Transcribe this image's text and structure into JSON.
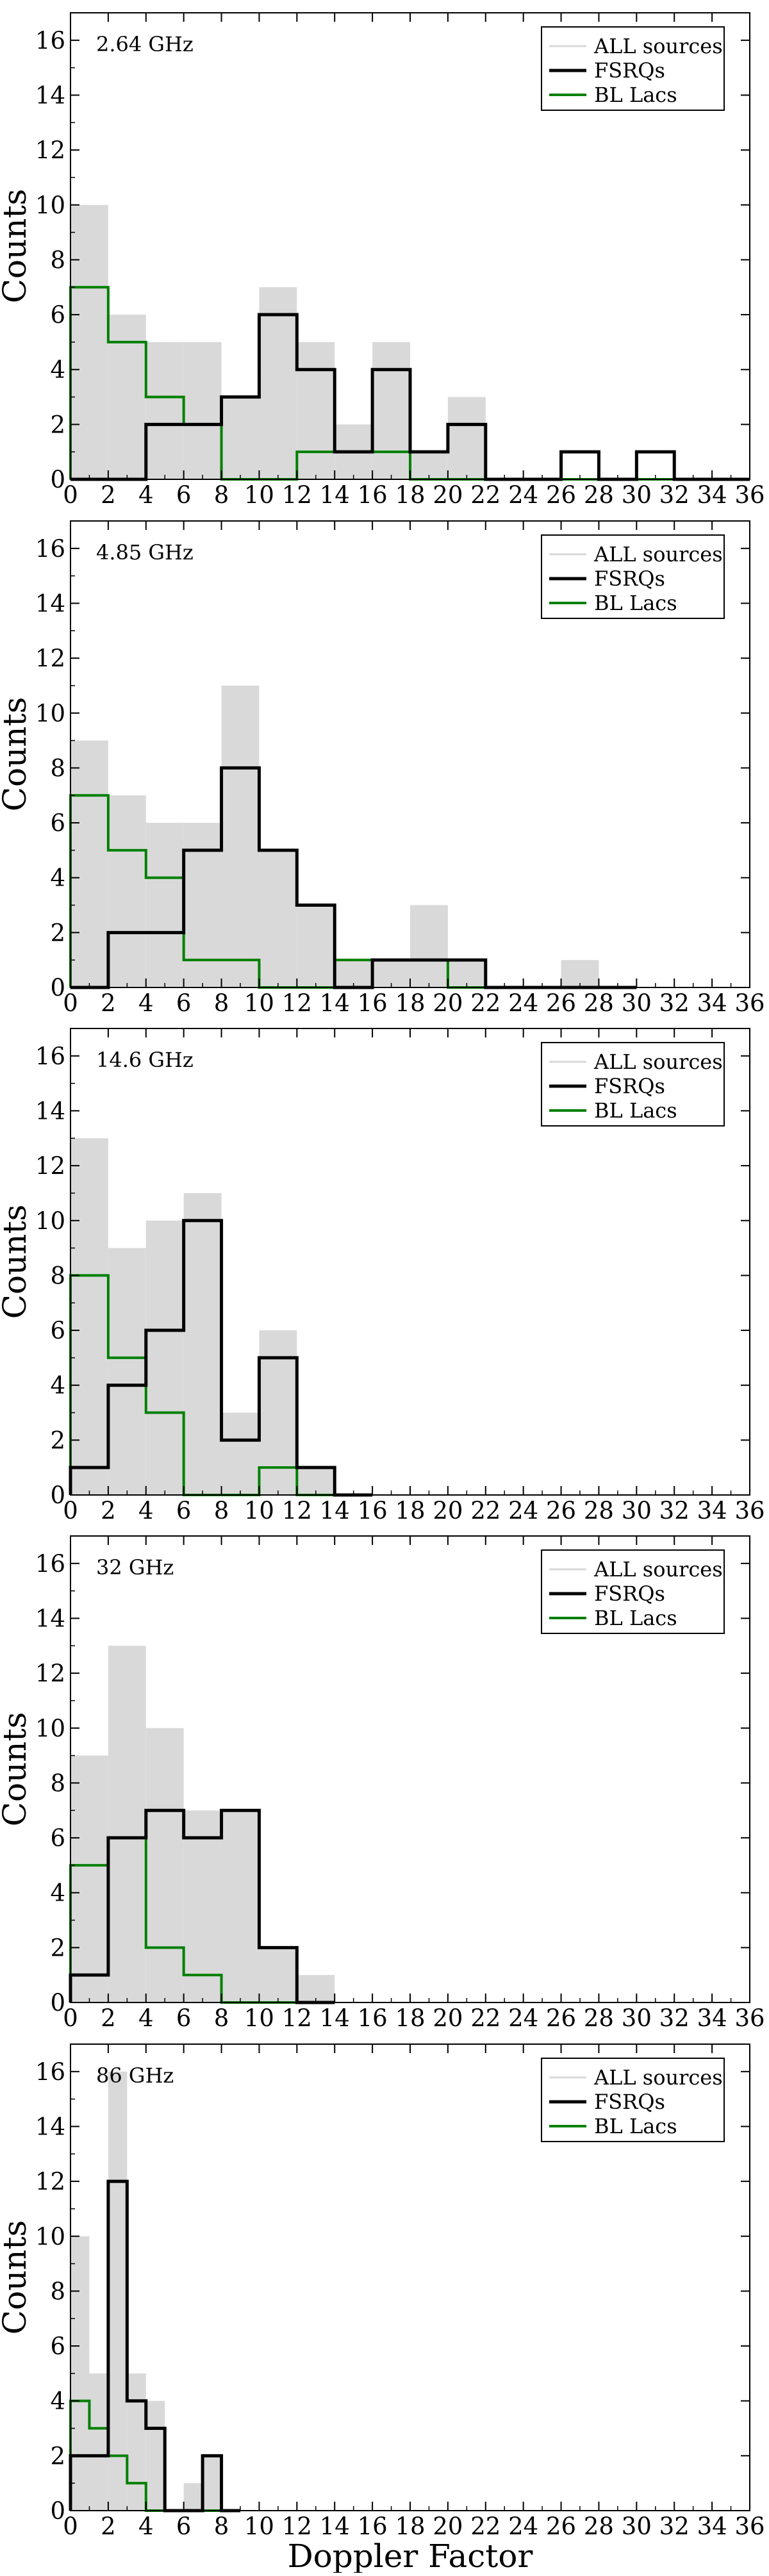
{
  "figure": {
    "xlabel": "Doppler Factor",
    "ylabel": "Counts",
    "colors": {
      "all": "#d9d9d9",
      "fsrq": "#000000",
      "bllac": "#008000"
    }
  },
  "chart_data": [
    {
      "type": "bar",
      "title": "2.64 GHz",
      "xlabel": "",
      "ylabel": "Counts",
      "xlim": [
        0,
        36
      ],
      "ylim": [
        0,
        17
      ],
      "xticks": [
        0,
        2,
        4,
        6,
        8,
        10,
        12,
        14,
        16,
        18,
        20,
        22,
        24,
        26,
        28,
        30,
        32,
        34,
        36
      ],
      "yticks": [
        0,
        2,
        4,
        6,
        8,
        10,
        12,
        14,
        16
      ],
      "legend": [
        "ALL sources",
        "FSRQs",
        "BL Lacs"
      ],
      "legend_position": "top-right",
      "series": [
        {
          "name": "ALL sources",
          "style": "fill",
          "bin_width": 2,
          "bins": [
            [
              0,
              10
            ],
            [
              2,
              6
            ],
            [
              4,
              5
            ],
            [
              6,
              5
            ],
            [
              8,
              3
            ],
            [
              10,
              7
            ],
            [
              12,
              5
            ],
            [
              14,
              2
            ],
            [
              16,
              5
            ],
            [
              18,
              1
            ],
            [
              20,
              3
            ]
          ]
        },
        {
          "name": "FSRQs",
          "style": "step",
          "bin_width": 2,
          "bins": [
            [
              0,
              0
            ],
            [
              2,
              0
            ],
            [
              4,
              2
            ],
            [
              6,
              2
            ],
            [
              8,
              3
            ],
            [
              10,
              6
            ],
            [
              12,
              4
            ],
            [
              14,
              1
            ],
            [
              16,
              4
            ],
            [
              18,
              1
            ],
            [
              20,
              2
            ],
            [
              22,
              0
            ],
            [
              24,
              0
            ],
            [
              26,
              1
            ],
            [
              28,
              0
            ],
            [
              30,
              1
            ],
            [
              32,
              0
            ],
            [
              34,
              0
            ]
          ]
        },
        {
          "name": "BL Lacs",
          "style": "step",
          "bin_width": 2,
          "bins": [
            [
              0,
              7
            ],
            [
              2,
              5
            ],
            [
              4,
              3
            ],
            [
              6,
              2
            ],
            [
              8,
              0
            ],
            [
              10,
              0
            ],
            [
              12,
              1
            ],
            [
              14,
              1
            ],
            [
              16,
              1
            ],
            [
              18,
              0
            ],
            [
              20,
              0
            ],
            [
              22,
              0
            ],
            [
              24,
              0
            ],
            [
              26,
              0
            ],
            [
              28,
              0
            ],
            [
              30,
              0
            ],
            [
              32,
              0
            ],
            [
              34,
              0
            ]
          ]
        }
      ]
    },
    {
      "type": "bar",
      "title": "4.85 GHz",
      "xlabel": "",
      "ylabel": "Counts",
      "xlim": [
        0,
        36
      ],
      "ylim": [
        0,
        17
      ],
      "xticks": [
        0,
        2,
        4,
        6,
        8,
        10,
        12,
        14,
        16,
        18,
        20,
        22,
        24,
        26,
        28,
        30,
        32,
        34,
        36
      ],
      "yticks": [
        0,
        2,
        4,
        6,
        8,
        10,
        12,
        14,
        16
      ],
      "legend": [
        "ALL sources",
        "FSRQs",
        "BL Lacs"
      ],
      "legend_position": "top-right",
      "series": [
        {
          "name": "ALL sources",
          "style": "fill",
          "bin_width": 2,
          "bins": [
            [
              0,
              9
            ],
            [
              2,
              7
            ],
            [
              4,
              6
            ],
            [
              6,
              6
            ],
            [
              8,
              11
            ],
            [
              10,
              5
            ],
            [
              12,
              3
            ],
            [
              14,
              1
            ],
            [
              16,
              1
            ],
            [
              18,
              3
            ],
            [
              20,
              1
            ],
            [
              26,
              1
            ]
          ]
        },
        {
          "name": "FSRQs",
          "style": "step",
          "bin_width": 2,
          "bins": [
            [
              0,
              0
            ],
            [
              2,
              2
            ],
            [
              4,
              2
            ],
            [
              6,
              5
            ],
            [
              8,
              8
            ],
            [
              10,
              5
            ],
            [
              12,
              3
            ],
            [
              14,
              0
            ],
            [
              16,
              1
            ],
            [
              18,
              1
            ],
            [
              20,
              1
            ],
            [
              22,
              0
            ],
            [
              24,
              0
            ],
            [
              26,
              0
            ],
            [
              28,
              0
            ]
          ]
        },
        {
          "name": "BL Lacs",
          "style": "step",
          "bin_width": 2,
          "bins": [
            [
              0,
              7
            ],
            [
              2,
              5
            ],
            [
              4,
              4
            ],
            [
              6,
              1
            ],
            [
              8,
              1
            ],
            [
              10,
              0
            ],
            [
              12,
              0
            ],
            [
              14,
              1
            ],
            [
              16,
              1
            ],
            [
              18,
              1
            ],
            [
              20,
              0
            ],
            [
              22,
              0
            ],
            [
              24,
              0
            ],
            [
              26,
              0
            ],
            [
              28,
              0
            ]
          ]
        }
      ]
    },
    {
      "type": "bar",
      "title": "14.6 GHz",
      "xlabel": "",
      "ylabel": "Counts",
      "xlim": [
        0,
        36
      ],
      "ylim": [
        0,
        17
      ],
      "xticks": [
        0,
        2,
        4,
        6,
        8,
        10,
        12,
        14,
        16,
        18,
        20,
        22,
        24,
        26,
        28,
        30,
        32,
        34,
        36
      ],
      "yticks": [
        0,
        2,
        4,
        6,
        8,
        10,
        12,
        14,
        16
      ],
      "legend": [
        "ALL sources",
        "FSRQs",
        "BL Lacs"
      ],
      "legend_position": "top-right",
      "series": [
        {
          "name": "ALL sources",
          "style": "fill",
          "bin_width": 2,
          "bins": [
            [
              0,
              13
            ],
            [
              2,
              9
            ],
            [
              4,
              10
            ],
            [
              6,
              11
            ],
            [
              8,
              3
            ],
            [
              10,
              6
            ],
            [
              12,
              1
            ]
          ]
        },
        {
          "name": "FSRQs",
          "style": "step",
          "bin_width": 2,
          "bins": [
            [
              0,
              1
            ],
            [
              2,
              4
            ],
            [
              4,
              6
            ],
            [
              6,
              10
            ],
            [
              8,
              2
            ],
            [
              10,
              5
            ],
            [
              12,
              1
            ],
            [
              14,
              0
            ]
          ]
        },
        {
          "name": "BL Lacs",
          "style": "step",
          "bin_width": 2,
          "bins": [
            [
              0,
              8
            ],
            [
              2,
              5
            ],
            [
              4,
              3
            ],
            [
              6,
              0
            ],
            [
              8,
              0
            ],
            [
              10,
              1
            ],
            [
              12,
              0
            ],
            [
              14,
              0
            ]
          ]
        }
      ]
    },
    {
      "type": "bar",
      "title": "32 GHz",
      "xlabel": "",
      "ylabel": "Counts",
      "xlim": [
        0,
        36
      ],
      "ylim": [
        0,
        17
      ],
      "xticks": [
        0,
        2,
        4,
        6,
        8,
        10,
        12,
        14,
        16,
        18,
        20,
        22,
        24,
        26,
        28,
        30,
        32,
        34,
        36
      ],
      "yticks": [
        0,
        2,
        4,
        6,
        8,
        10,
        12,
        14,
        16
      ],
      "legend": [
        "ALL sources",
        "FSRQs",
        "BL Lacs"
      ],
      "legend_position": "top-right",
      "series": [
        {
          "name": "ALL sources",
          "style": "fill",
          "bin_width": 2,
          "bins": [
            [
              0,
              9
            ],
            [
              2,
              13
            ],
            [
              4,
              10
            ],
            [
              6,
              7
            ],
            [
              8,
              7
            ],
            [
              10,
              2
            ],
            [
              12,
              1
            ]
          ]
        },
        {
          "name": "FSRQs",
          "style": "step",
          "bin_width": 2,
          "bins": [
            [
              0,
              1
            ],
            [
              2,
              6
            ],
            [
              4,
              7
            ],
            [
              6,
              6
            ],
            [
              8,
              7
            ],
            [
              10,
              2
            ],
            [
              12,
              0
            ]
          ]
        },
        {
          "name": "BL Lacs",
          "style": "step",
          "bin_width": 2,
          "bins": [
            [
              0,
              5
            ],
            [
              2,
              6
            ],
            [
              4,
              2
            ],
            [
              6,
              1
            ],
            [
              8,
              0
            ],
            [
              10,
              0
            ],
            [
              12,
              0
            ]
          ]
        }
      ]
    },
    {
      "type": "bar",
      "title": "86 GHz",
      "xlabel": "Doppler Factor",
      "ylabel": "Counts",
      "xlim": [
        0,
        36
      ],
      "ylim": [
        0,
        17
      ],
      "xticks": [
        0,
        2,
        4,
        6,
        8,
        10,
        12,
        14,
        16,
        18,
        20,
        22,
        24,
        26,
        28,
        30,
        32,
        34,
        36
      ],
      "yticks": [
        0,
        2,
        4,
        6,
        8,
        10,
        12,
        14,
        16
      ],
      "legend": [
        "ALL sources",
        "FSRQs",
        "BL Lacs"
      ],
      "legend_position": "top-right",
      "series": [
        {
          "name": "ALL sources",
          "style": "fill",
          "bin_width": 1,
          "bins": [
            [
              0,
              10
            ],
            [
              1,
              5
            ],
            [
              2,
              16
            ],
            [
              3,
              5
            ],
            [
              4,
              4
            ],
            [
              5,
              0
            ],
            [
              6,
              1
            ],
            [
              7,
              2
            ]
          ]
        },
        {
          "name": "FSRQs",
          "style": "step",
          "bin_width": 1,
          "bins": [
            [
              0,
              2
            ],
            [
              1,
              2
            ],
            [
              2,
              12
            ],
            [
              3,
              4
            ],
            [
              4,
              3
            ],
            [
              5,
              0
            ],
            [
              6,
              0
            ],
            [
              7,
              2
            ],
            [
              8,
              0
            ]
          ]
        },
        {
          "name": "BL Lacs",
          "style": "step",
          "bin_width": 1,
          "bins": [
            [
              0,
              4
            ],
            [
              1,
              3
            ],
            [
              2,
              2
            ],
            [
              3,
              1
            ],
            [
              4,
              0
            ],
            [
              5,
              0
            ],
            [
              6,
              0
            ],
            [
              7,
              0
            ],
            [
              8,
              0
            ]
          ]
        }
      ]
    }
  ]
}
